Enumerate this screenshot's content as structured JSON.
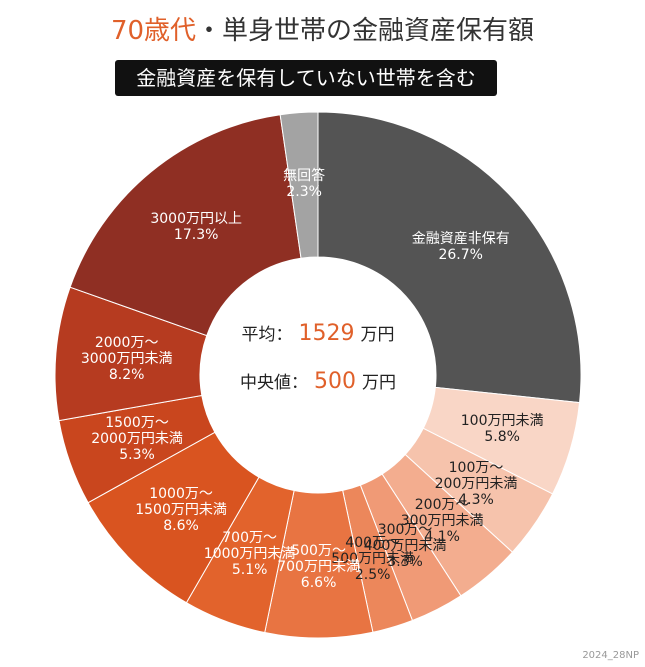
{
  "chart_data": {
    "type": "donut",
    "title": [
      "70歳代",
      "・単身世帯の金融資産保有額"
    ],
    "subtitle": "金融資産を保有していない世帯を含む",
    "categories": [
      "金融資産非保有",
      "100万円未満",
      "100万～\n200万円未満",
      "200万～\n300万円未満",
      "300万～\n400万円未満",
      "400万～\n500万円未満",
      "500万～\n700万円未満",
      "700万～\n1000万円未満",
      "1000万～\n1500万円未満",
      "1500万～\n2000万円未満",
      "2000万～\n3000万円未満",
      "3000万円以上",
      "無回答"
    ],
    "values": [
      26.7,
      5.8,
      4.3,
      4.1,
      3.3,
      2.5,
      6.6,
      5.1,
      8.6,
      5.3,
      8.2,
      17.3,
      2.3
    ],
    "value_labels": [
      "26.7%",
      "5.8%",
      "4.3%",
      "4.1%",
      "3.3%",
      "2.5%",
      "6.6%",
      "5.1%",
      "8.6%",
      "5.3%",
      "8.2%",
      "17.3%",
      "2.3%"
    ],
    "colors": [
      "#545454",
      "#f9d6c6",
      "#f6c3ac",
      "#f3ad8f",
      "#f09a76",
      "#ec875b",
      "#e87442",
      "#e2632c",
      "#d95420",
      "#c9461e",
      "#b63b20",
      "#8f2f23",
      "#a3a3a3"
    ],
    "label_colors": [
      "#ffffff",
      "#222222",
      "#222222",
      "#222222",
      "#222222",
      "#222222",
      "#ffffff",
      "#ffffff",
      "#ffffff",
      "#ffffff",
      "#ffffff",
      "#ffffff",
      "#ffffff"
    ],
    "center": {
      "mean_label": "平均：",
      "mean": 1529,
      "mean_unit": "万円",
      "median_label": "中央値：",
      "median": 500,
      "median_unit": "万円"
    },
    "note": "2024_28NP"
  }
}
